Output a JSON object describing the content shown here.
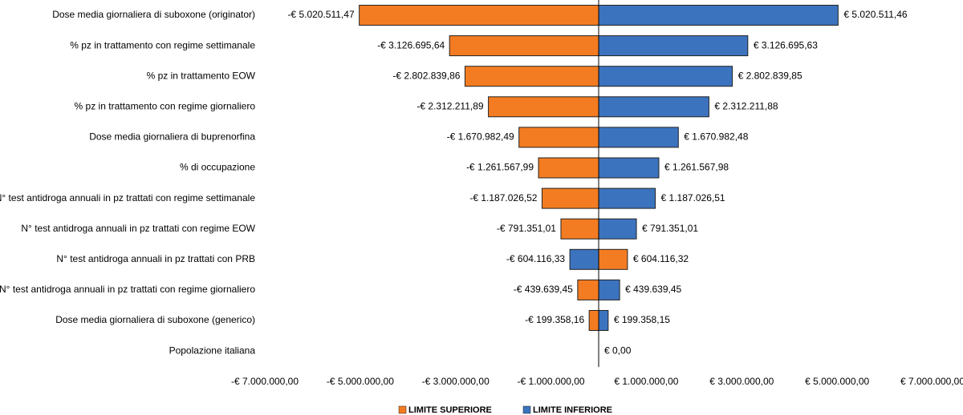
{
  "chart_data": {
    "type": "tornado",
    "categories": [
      "Dose media giornaliera di suboxone (originator)",
      "% pz in trattamento con regime settimanale",
      "% pz in trattamento EOW",
      "% pz in trattamento con regime giornaliero",
      "Dose media giornaliera di buprenorfina",
      "% di occupazione",
      "N° test antidroga annuali in pz trattati con regime settimanale",
      "N° test antidroga annuali in pz trattati con regime EOW",
      "N° test antidroga annuali in pz trattati con PRB",
      "N° test antidroga annuali in pz trattati con regime giornaliero",
      "Dose media giornaliera di suboxone (generico)",
      "Popolazione italiana"
    ],
    "series": [
      {
        "name": "LIMITE SUPERIORE",
        "color": "#f37c22",
        "values": [
          -5020511.47,
          -3126695.64,
          -2802839.86,
          -2312211.89,
          -1670982.49,
          -1261567.99,
          -1187026.52,
          -791351.01,
          604116.32,
          -439639.45,
          -199358.16,
          0
        ],
        "value_labels": [
          "-€ 5.020.511,47",
          "-€ 3.126.695,64",
          "-€ 2.802.839,86",
          "-€ 2.312.211,89",
          "-€ 1.670.982,49",
          "-€ 1.261.567,99",
          "-€ 1.187.026,52",
          "-€ 791.351,01",
          "€ 604.116,32",
          "-€ 439.639,45",
          "-€ 199.358,16",
          null
        ]
      },
      {
        "name": "LIMITE INFERIORE",
        "color": "#3c73be",
        "values": [
          5020511.46,
          3126695.63,
          2802839.85,
          2312211.88,
          1670982.48,
          1261567.98,
          1187026.51,
          791351.01,
          -604116.33,
          439639.45,
          199358.15,
          0
        ],
        "value_labels": [
          "€ 5.020.511,46",
          "€ 3.126.695,63",
          "€ 2.802.839,85",
          "€ 2.312.211,88",
          "€ 1.670.982,48",
          "€ 1.261.567,98",
          "€ 1.187.026,51",
          "€ 791.351,01",
          "-€ 604.116,33",
          "€ 439.639,45",
          "€ 199.358,15",
          "€ 0,00"
        ]
      }
    ],
    "xlim": [
      -7000000,
      7000000
    ],
    "xticks": [
      {
        "value": -7000000,
        "label": "-€ 7.000.000,00"
      },
      {
        "value": -5000000,
        "label": "-€ 5.000.000,00"
      },
      {
        "value": -3000000,
        "label": "-€ 3.000.000,00"
      },
      {
        "value": -1000000,
        "label": "-€ 1.000.000,00"
      },
      {
        "value": 1000000,
        "label": "€ 1.000.000,00"
      },
      {
        "value": 3000000,
        "label": "€ 3.000.000,00"
      },
      {
        "value": 5000000,
        "label": "€ 5.000.000,00"
      },
      {
        "value": 7000000,
        "label": "€ 7.000.000,00"
      }
    ],
    "grid": false,
    "legend": "bottom"
  }
}
